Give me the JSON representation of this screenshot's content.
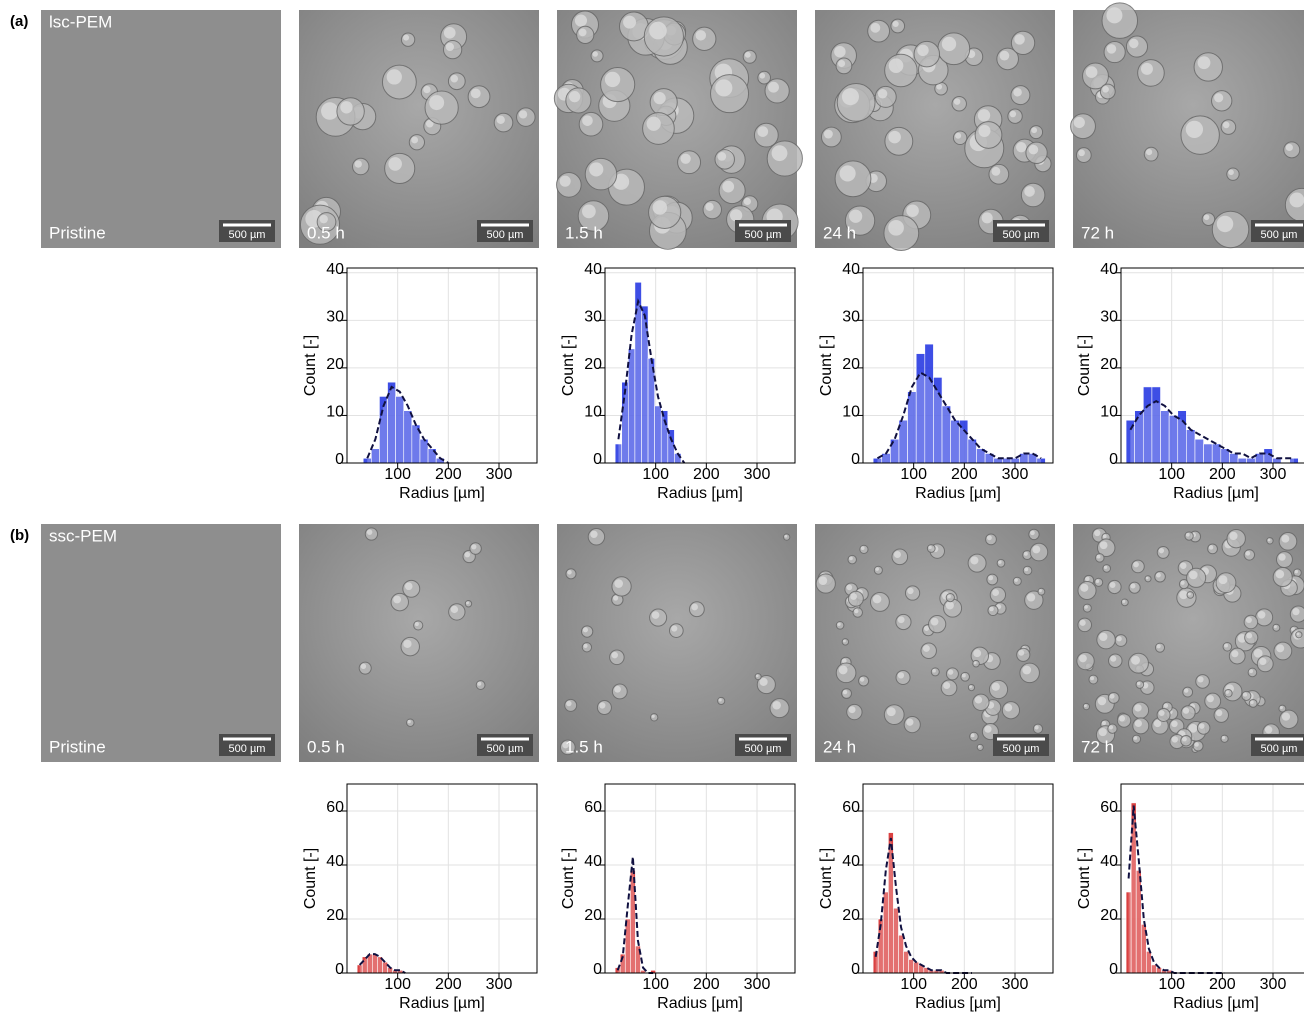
{
  "figure": {
    "panels": [
      {
        "label": "(a)",
        "name": "lsc-PEM",
        "images": [
          {
            "time": "Pristine",
            "scale": "500 µm"
          },
          {
            "time": "0.5 h",
            "scale": "500 µm"
          },
          {
            "time": "1.5 h",
            "scale": "500 µm"
          },
          {
            "time": "24 h",
            "scale": "500 µm"
          },
          {
            "time": "72 h",
            "scale": "500 µm"
          }
        ]
      },
      {
        "label": "(b)",
        "name": "ssc-PEM",
        "images": [
          {
            "time": "Pristine",
            "scale": "500 µm"
          },
          {
            "time": "0.5 h",
            "scale": "500 µm"
          },
          {
            "time": "1.5 h",
            "scale": "500 µm"
          },
          {
            "time": "24 h",
            "scale": "500 µm"
          },
          {
            "time": "72 h",
            "scale": "500 µm"
          }
        ]
      }
    ]
  },
  "chart_data": [
    {
      "type": "histogram",
      "color": "#1c2fe0",
      "bins": [
        32,
        48,
        64,
        80,
        96,
        112,
        128,
        144,
        160,
        176,
        192,
        208
      ],
      "values": [
        1,
        3,
        14,
        17,
        14,
        11,
        8,
        5,
        3,
        1,
        0
      ],
      "kde": [
        1,
        5,
        12,
        16,
        15,
        12,
        8,
        5,
        3,
        1,
        0
      ],
      "xlim": [
        0,
        375
      ],
      "xticks": [
        100,
        200,
        300
      ],
      "ylim": [
        0,
        41
      ],
      "yticks": [
        0,
        10,
        20,
        30,
        40
      ],
      "xlabel": "Radius [µm]",
      "ylabel": "Count [-]",
      "grid": true
    },
    {
      "type": "histogram",
      "color": "#1c2fe0",
      "bins": [
        20,
        33,
        46,
        59,
        72,
        85,
        98,
        111,
        124,
        137,
        150,
        163
      ],
      "values": [
        4,
        17,
        24,
        38,
        33,
        22,
        12,
        11,
        7,
        2,
        0
      ],
      "kde": [
        5,
        15,
        27,
        34,
        31,
        22,
        14,
        9,
        5,
        2,
        0
      ],
      "xlim": [
        0,
        375
      ],
      "xticks": [
        100,
        200,
        300
      ],
      "ylim": [
        0,
        41
      ],
      "yticks": [
        0,
        10,
        20,
        30,
        40
      ],
      "xlabel": "Radius [µm]",
      "ylabel": "Count [-]",
      "grid": true
    },
    {
      "type": "histogram",
      "color": "#1c2fe0",
      "bins": [
        20,
        37,
        54,
        71,
        88,
        105,
        122,
        139,
        156,
        173,
        190,
        207,
        224,
        241,
        258,
        275,
        292,
        309,
        326,
        343,
        360
      ],
      "values": [
        1,
        2,
        5,
        9,
        15,
        23,
        25,
        18,
        12,
        9,
        9,
        5,
        3,
        2,
        1,
        1,
        1,
        2,
        2,
        1
      ],
      "kde": [
        1,
        2,
        5,
        10,
        16,
        19,
        18,
        15,
        12,
        9,
        7,
        5,
        3,
        2,
        1,
        1,
        1,
        2,
        2,
        1
      ],
      "xlim": [
        0,
        375
      ],
      "xticks": [
        100,
        200,
        300
      ],
      "ylim": [
        0,
        41
      ],
      "yticks": [
        0,
        10,
        20,
        30,
        40
      ],
      "xlabel": "Radius [µm]",
      "ylabel": "Count [-]",
      "grid": true
    },
    {
      "type": "histogram",
      "color": "#1c2fe0",
      "bins": [
        10,
        27,
        44,
        61,
        78,
        95,
        112,
        129,
        146,
        163,
        180,
        197,
        214,
        231,
        248,
        265,
        282,
        299,
        316,
        333,
        350
      ],
      "values": [
        9,
        11,
        16,
        16,
        11,
        10,
        11,
        7,
        5,
        4,
        4,
        3,
        2,
        1,
        1,
        2,
        3,
        1,
        0,
        1
      ],
      "kde": [
        7,
        10,
        12,
        13,
        12,
        10,
        9,
        7,
        6,
        5,
        4,
        3,
        2,
        2,
        1,
        2,
        2,
        1,
        1,
        1
      ],
      "xlim": [
        0,
        375
      ],
      "xticks": [
        100,
        200,
        300
      ],
      "ylim": [
        0,
        41
      ],
      "yticks": [
        0,
        10,
        20,
        30,
        40
      ],
      "xlabel": "Radius [µm]",
      "ylabel": "Count [-]",
      "grid": true
    },
    {
      "type": "histogram",
      "color": "#d42020",
      "bins": [
        20,
        30,
        40,
        50,
        60,
        70,
        80,
        90,
        100,
        110,
        120
      ],
      "values": [
        3,
        6,
        7,
        7,
        6,
        4,
        2,
        1,
        1,
        0
      ],
      "kde": [
        3,
        5,
        7,
        7,
        6,
        4,
        2,
        1,
        1,
        0
      ],
      "xlim": [
        0,
        375
      ],
      "xticks": [
        100,
        200,
        300
      ],
      "ylim": [
        0,
        70
      ],
      "yticks": [
        0,
        20,
        40,
        60
      ],
      "xlabel": "Radius [µm]",
      "ylabel": "Count [-]",
      "grid": true
    },
    {
      "type": "histogram",
      "color": "#d42020",
      "bins": [
        20,
        30,
        40,
        50,
        60,
        70,
        80,
        90,
        100
      ],
      "values": [
        2,
        7,
        20,
        38,
        10,
        1,
        0,
        1
      ],
      "kde": [
        1,
        6,
        25,
        43,
        12,
        2,
        0,
        0
      ],
      "xlim": [
        0,
        375
      ],
      "xticks": [
        100,
        200,
        300
      ],
      "ylim": [
        0,
        70
      ],
      "yticks": [
        0,
        20,
        40,
        60
      ],
      "xlabel": "Radius [µm]",
      "ylabel": "Count [-]",
      "grid": true
    },
    {
      "type": "histogram",
      "color": "#d42020",
      "bins": [
        20,
        30,
        40,
        50,
        60,
        70,
        80,
        90,
        100,
        110,
        120,
        130,
        140,
        150,
        160,
        170,
        180,
        190,
        200,
        210,
        220
      ],
      "values": [
        8,
        20,
        30,
        52,
        24,
        14,
        8,
        5,
        4,
        3,
        2,
        1,
        1,
        1,
        0,
        0,
        0,
        0,
        0,
        0
      ],
      "kde": [
        6,
        18,
        38,
        50,
        32,
        17,
        10,
        6,
        4,
        3,
        2,
        1,
        1,
        1,
        0,
        0,
        0,
        0,
        0,
        0
      ],
      "xlim": [
        0,
        375
      ],
      "xticks": [
        100,
        200,
        300
      ],
      "ylim": [
        0,
        70
      ],
      "yticks": [
        0,
        20,
        40,
        60
      ],
      "xlabel": "Radius [µm]",
      "ylabel": "Count [-]",
      "grid": true
    },
    {
      "type": "histogram",
      "color": "#d42020",
      "bins": [
        10,
        20,
        30,
        40,
        50,
        60,
        70,
        80,
        90,
        100,
        110,
        120,
        130,
        140,
        150,
        160,
        170,
        180,
        190,
        200,
        210
      ],
      "values": [
        30,
        63,
        38,
        18,
        8,
        3,
        2,
        1,
        1,
        0,
        0,
        0,
        0,
        0,
        0,
        0,
        0,
        0,
        0,
        0
      ],
      "kde": [
        35,
        62,
        42,
        20,
        9,
        4,
        2,
        1,
        1,
        0,
        0,
        0,
        0,
        0,
        0,
        0,
        0,
        0,
        0,
        0
      ],
      "xlim": [
        0,
        375
      ],
      "xticks": [
        100,
        200,
        300
      ],
      "ylim": [
        0,
        70
      ],
      "yticks": [
        0,
        20,
        40,
        60
      ],
      "xlabel": "Radius [µm]",
      "ylabel": "Count [-]",
      "grid": true
    }
  ]
}
